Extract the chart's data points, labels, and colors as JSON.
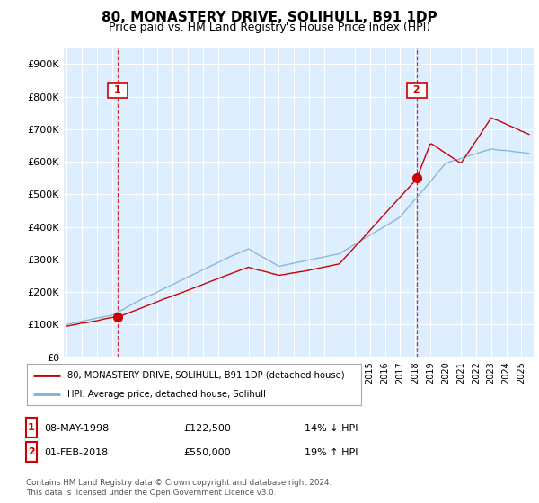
{
  "title": "80, MONASTERY DRIVE, SOLIHULL, B91 1DP",
  "subtitle": "Price paid vs. HM Land Registry's House Price Index (HPI)",
  "ylim": [
    0,
    950000
  ],
  "yticks": [
    0,
    100000,
    200000,
    300000,
    400000,
    500000,
    600000,
    700000,
    800000,
    900000
  ],
  "ytick_labels": [
    "£0",
    "£100K",
    "£200K",
    "£300K",
    "£400K",
    "£500K",
    "£600K",
    "£700K",
    "£800K",
    "£900K"
  ],
  "sale1_x": 1998.35,
  "sale1_y": 122500,
  "sale2_x": 2018.08,
  "sale2_y": 550000,
  "legend_entry1": "80, MONASTERY DRIVE, SOLIHULL, B91 1DP (detached house)",
  "legend_entry2": "HPI: Average price, detached house, Solihull",
  "footnote": "Contains HM Land Registry data © Crown copyright and database right 2024.\nThis data is licensed under the Open Government Licence v3.0.",
  "line_color_red": "#cc0000",
  "line_color_blue": "#7fb2d9",
  "chart_bg_color": "#ddeeff",
  "background_color": "#ffffff",
  "grid_color": "#ffffff",
  "marker_box_color": "#cc0000",
  "title_fontsize": 11,
  "subtitle_fontsize": 9,
  "xmin": 1994.8,
  "xmax": 2025.8,
  "row1_date": "08-MAY-1998",
  "row1_price": "£122,500",
  "row1_hpi": "14% ↓ HPI",
  "row2_date": "01-FEB-2018",
  "row2_price": "£550,000",
  "row2_hpi": "19% ↑ HPI"
}
